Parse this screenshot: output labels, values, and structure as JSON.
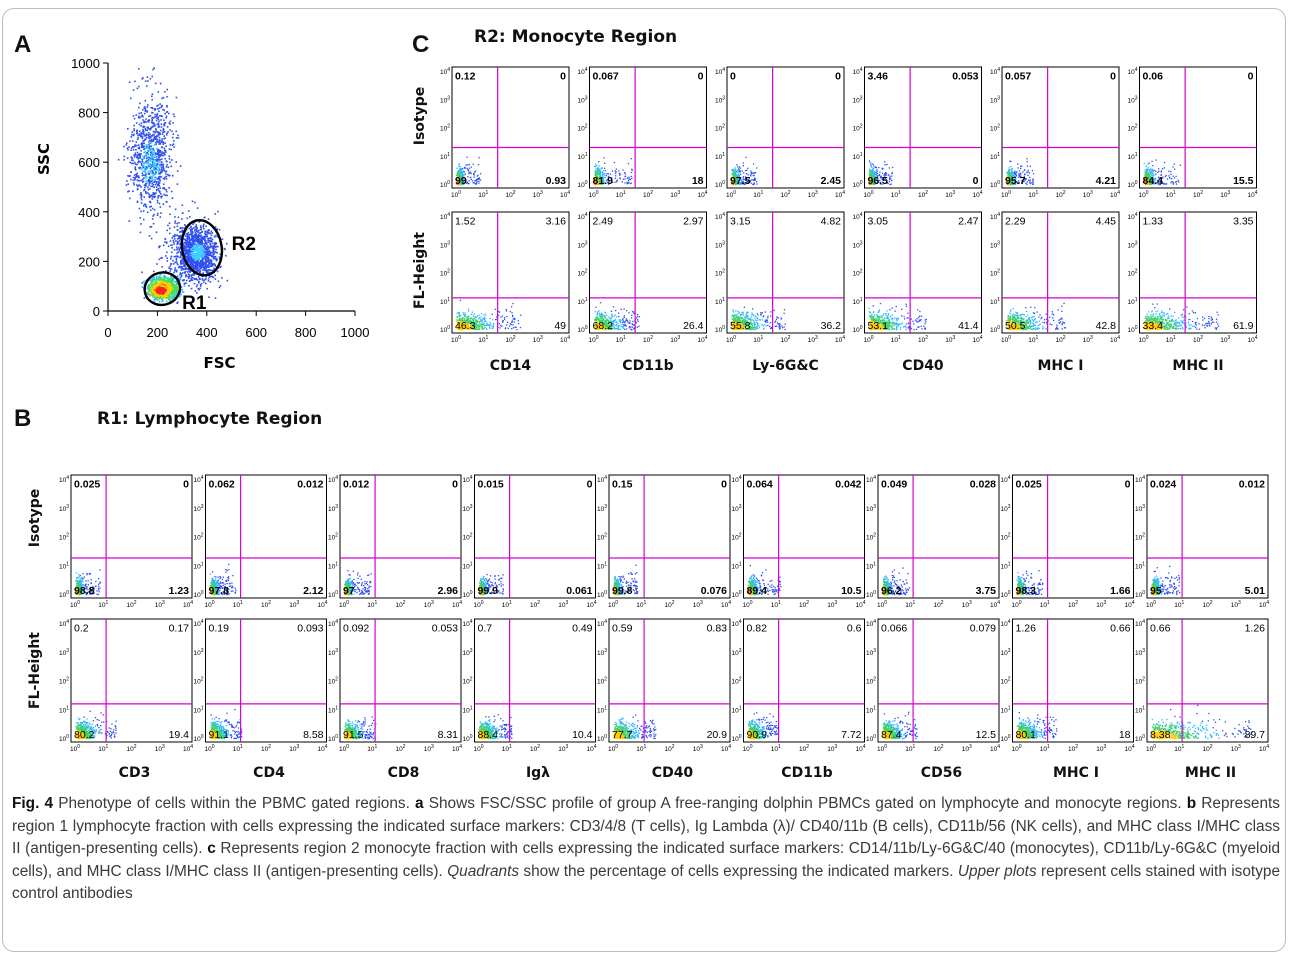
{
  "panels": {
    "a": "A",
    "b": "B",
    "c": "C"
  },
  "titles": {
    "r2": "R2: Monocyte Region",
    "r1": "R1: Lymphocyte Region"
  },
  "row_labels": {
    "isotype": "Isotype",
    "fl": "FL-Height"
  },
  "chart_data": [
    {
      "type": "scatter",
      "panel": "A",
      "xlabel": "FSC",
      "ylabel": "SSC",
      "xlim": [
        0,
        1000
      ],
      "ylim": [
        0,
        1000
      ],
      "xticks": [
        "0",
        "200",
        "400",
        "600",
        "800",
        "1000"
      ],
      "yticks": [
        "0",
        "200",
        "400",
        "600",
        "800",
        "1000"
      ],
      "gates": [
        {
          "name": "R1",
          "cx": 220,
          "cy": 90,
          "rx": 72,
          "ry": 65
        },
        {
          "name": "R2",
          "cx": 380,
          "cy": 255,
          "rx": 80,
          "ry": 112
        }
      ]
    },
    {
      "type": "scatter",
      "panel": "C",
      "title": "R2: Monocyte Region",
      "axis_scale": "log",
      "tick_exponents": [
        "0",
        "1",
        "2",
        "3",
        "4"
      ],
      "markers": [
        "CD14",
        "CD11b",
        "Ly-6G&C",
        "CD40",
        "MHC I",
        "MHC II"
      ],
      "isotype": [
        [
          "0.12",
          "0",
          "99",
          "0.93"
        ],
        [
          "0.067",
          "0",
          "81.9",
          "18"
        ],
        [
          "0",
          "0",
          "97.5",
          "2.45"
        ],
        [
          "3.46",
          "0.053",
          "96.5",
          "0"
        ],
        [
          "0.057",
          "0",
          "95.7",
          "4.21"
        ],
        [
          "0.06",
          "0",
          "84.4",
          "15.5"
        ]
      ],
      "stained": [
        [
          "1.52",
          "3.16",
          "46.3",
          "49"
        ],
        [
          "2.49",
          "2.97",
          "68.2",
          "26.4"
        ],
        [
          "3.15",
          "4.82",
          "55.8",
          "36.2"
        ],
        [
          "3.05",
          "2.47",
          "53.1",
          "41.4"
        ],
        [
          "2.29",
          "4.45",
          "50.5",
          "42.8"
        ],
        [
          "1.33",
          "3.35",
          "33.4",
          "61.9"
        ]
      ]
    },
    {
      "type": "scatter",
      "panel": "B",
      "title": "R1: Lymphocyte Region",
      "axis_scale": "log",
      "tick_exponents": [
        "0",
        "1",
        "2",
        "3",
        "4"
      ],
      "markers": [
        "CD3",
        "CD4",
        "CD8",
        "Igλ",
        "CD40",
        "CD11b",
        "CD56",
        "MHC I",
        "MHC II"
      ],
      "isotype": [
        [
          "0.025",
          "0",
          "98.8",
          "1.23"
        ],
        [
          "0.062",
          "0.012",
          "97.8",
          "2.12"
        ],
        [
          "0.012",
          "0",
          "97",
          "2.96"
        ],
        [
          "0.015",
          "0",
          "99.9",
          "0.061"
        ],
        [
          "0.15",
          "0",
          "99.8",
          "0.076"
        ],
        [
          "0.064",
          "0.042",
          "89.4",
          "10.5"
        ],
        [
          "0.049",
          "0.028",
          "96.2",
          "3.75"
        ],
        [
          "0.025",
          "0",
          "98.3",
          "1.66"
        ],
        [
          "0.024",
          "0.012",
          "95",
          "5.01"
        ]
      ],
      "stained": [
        [
          "0.2",
          "0.17",
          "80.2",
          "19.4"
        ],
        [
          "0.19",
          "0.093",
          "91.1",
          "8.58"
        ],
        [
          "0.092",
          "0.053",
          "91.5",
          "8.31"
        ],
        [
          "0.7",
          "0.49",
          "88.4",
          "10.4"
        ],
        [
          "0.59",
          "0.83",
          "77.7",
          "20.9"
        ],
        [
          "0.82",
          "0.6",
          "90.9",
          "7.72"
        ],
        [
          "0.066",
          "0.079",
          "87.4",
          "12.5"
        ],
        [
          "1.26",
          "0.66",
          "80.1",
          "18"
        ],
        [
          "0.66",
          "1.26",
          "8.38",
          "89.7"
        ]
      ]
    }
  ],
  "caption": {
    "fig": "Fig. 4",
    "text1": " Phenotype of cells within the PBMC gated regions. ",
    "a": "a",
    "text2": " Shows FSC/SSC profile of group A free-ranging dolphin PBMCs gated on lymphocyte and monocyte regions. ",
    "b": "b",
    "text3": " Represents region 1 lymphocyte fraction with cells expressing the indicated surface markers: CD3/4/8 (T cells), Ig Lambda (λ)/ CD40/11b (B cells), CD11b/56 (NK cells), and MHC class I/MHC class II (antigen-presenting cells). ",
    "c": "c",
    "text4": " Represents region 2 monocyte fraction with cells expressing the indicated surface markers: CD14/11b/Ly-6G&C/40 (monocytes), CD11b/Ly-6G&C (myeloid cells), and MHC class I/MHC class II (antigen-presenting cells). ",
    "quad": "Quadrants",
    "text5": " show the percentage of cells expressing the indicated markers. ",
    "upper": "Upper plots",
    "text6": " represent cells stained with isotype control antibodies"
  }
}
